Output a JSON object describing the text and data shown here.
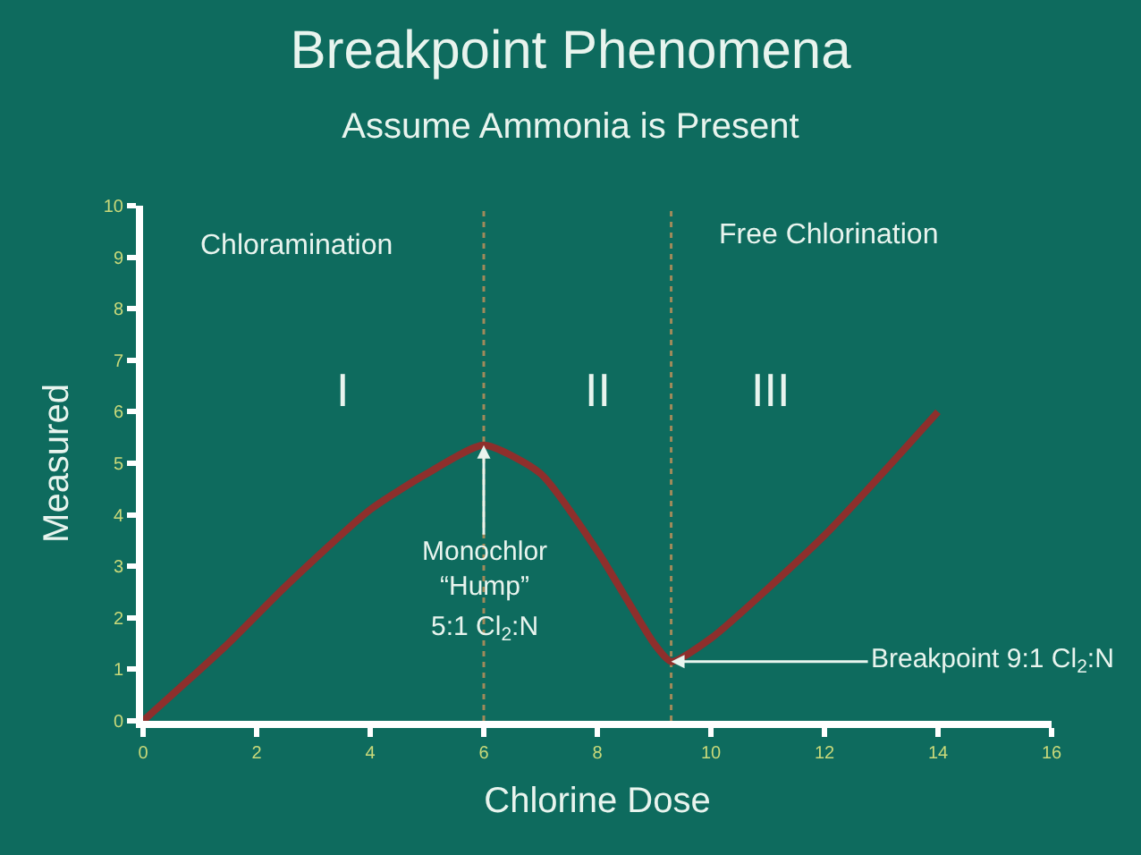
{
  "chart_data": {
    "type": "line",
    "title": "Breakpoint Phenomena",
    "subtitle": "Assume Ammonia is Present",
    "xlabel": "Chlorine Dose",
    "ylabel": "Measured",
    "x": [
      0,
      1.5,
      2.5,
      4,
      5,
      6,
      7,
      8,
      9,
      9.3,
      10,
      12,
      14
    ],
    "series": [
      {
        "color": "#8e2f2c",
        "values": [
          0,
          1.5,
          2.6,
          4.1,
          4.8,
          5.35,
          4.8,
          3.3,
          1.5,
          1.15,
          1.6,
          3.6,
          6.0
        ]
      }
    ],
    "xlim": [
      0,
      16
    ],
    "xticks": [
      0,
      2,
      4,
      6,
      8,
      10,
      12,
      14,
      16
    ],
    "ylim": [
      0,
      10
    ],
    "yticks": [
      0,
      1,
      2,
      3,
      4,
      5,
      6,
      7,
      8,
      9,
      10
    ],
    "grid": false,
    "marker": "none",
    "line_style": "solid",
    "ref_lines": [
      {
        "axis": "x",
        "value": 6,
        "color": "#a08a5a",
        "line_style": "dotted"
      },
      {
        "axis": "x",
        "value": 9.3,
        "color": "#a08a5a",
        "line_style": "dotted"
      }
    ],
    "annotations": [
      "Chloramination",
      "Free Chlorination",
      "I",
      "II",
      "III",
      {
        "text": "Monochlor\n“Hump”",
        "x": 6,
        "y": 5.35
      },
      "5:1 Cl$_{2}$:N",
      {
        "text": "Breakpoint 9:1 Cl$_{2}$:N",
        "x": 9.3,
        "y": 1.15
      }
    ]
  }
}
